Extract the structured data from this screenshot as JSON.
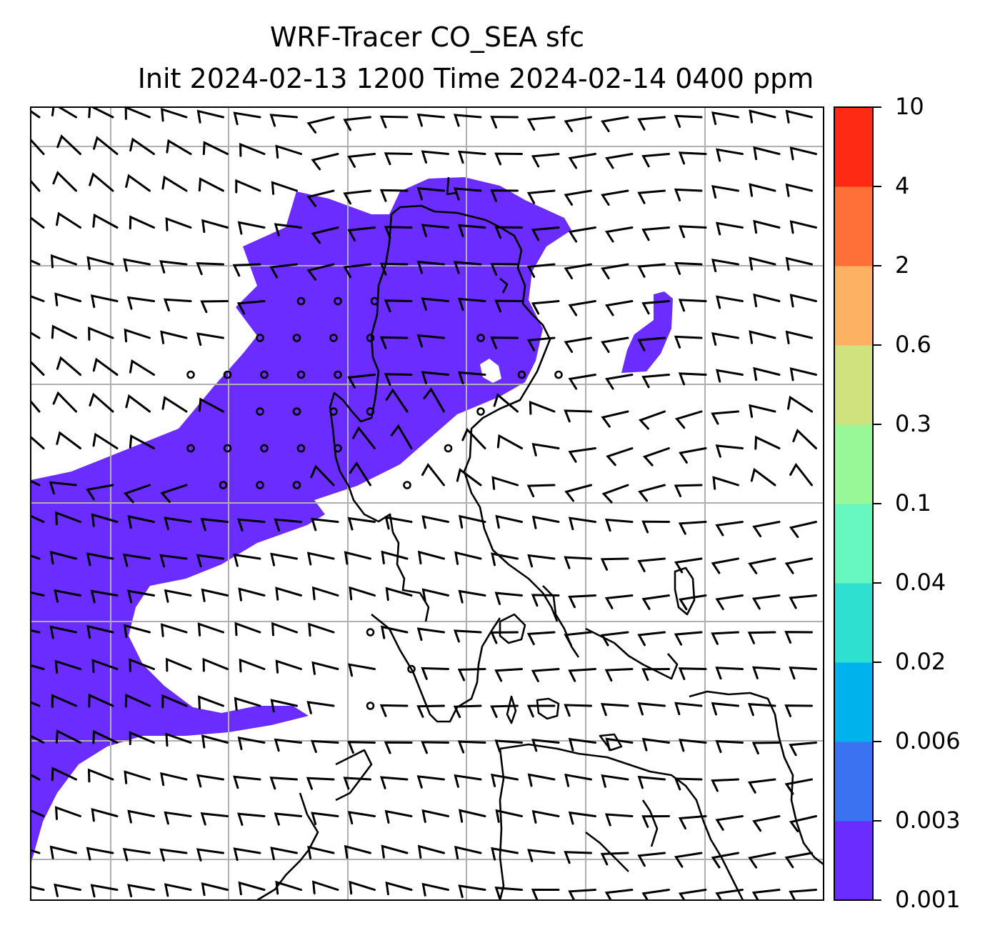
{
  "title": {
    "line1": "WRF-Tracer CO_SEA sfc",
    "line2": "Init 2024-02-13 1200 Time 2024-02-14 0400 ppm"
  },
  "colorbar": {
    "ticks": [
      "10",
      "4",
      "2",
      "0.6",
      "0.3",
      "0.1",
      "0.04",
      "0.02",
      "0.006",
      "0.003",
      "0.001"
    ],
    "levels_bottom_to_top": [
      {
        "from": "0.001",
        "to": "0.003",
        "color": "#6a2cff"
      },
      {
        "from": "0.003",
        "to": "0.006",
        "color": "#3a72f2"
      },
      {
        "from": "0.006",
        "to": "0.02",
        "color": "#00b2ec"
      },
      {
        "from": "0.02",
        "to": "0.04",
        "color": "#2ee0d0"
      },
      {
        "from": "0.04",
        "to": "0.1",
        "color": "#66f8c0"
      },
      {
        "from": "0.1",
        "to": "0.3",
        "color": "#98f898"
      },
      {
        "from": "0.3",
        "to": "0.6",
        "color": "#d0e27e"
      },
      {
        "from": "0.6",
        "to": "2",
        "color": "#fcb262"
      },
      {
        "from": "2",
        "to": "4",
        "color": "#ff7038"
      },
      {
        "from": "4",
        "to": "10",
        "color": "#ff2a14"
      }
    ]
  },
  "map": {
    "tracer_fill_color": "#6a2cff",
    "gridline_color": "#b0b0b0",
    "coastline_color": "#000000",
    "wind_barb_color": "#000000"
  }
}
